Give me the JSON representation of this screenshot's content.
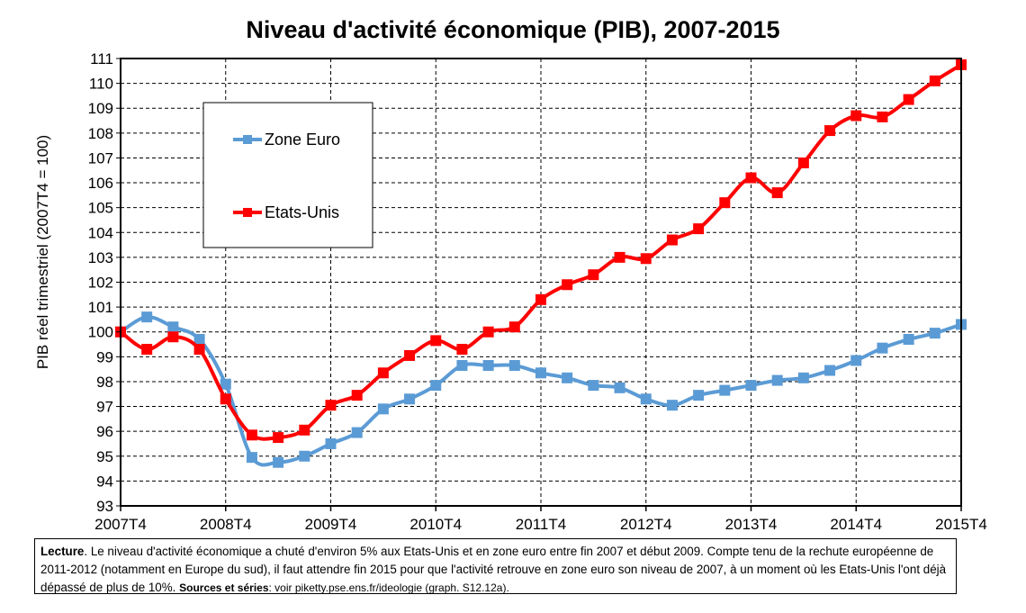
{
  "chart_data": {
    "type": "line",
    "title": "Niveau d'activité économique (PIB), 2007-2015",
    "ylabel": "PIB réel trimestriel (2007T4 = 100)",
    "xlabel": "",
    "ylim": [
      93,
      111
    ],
    "yticks": [
      93,
      94,
      95,
      96,
      97,
      98,
      99,
      100,
      101,
      102,
      103,
      104,
      105,
      106,
      107,
      108,
      109,
      110,
      111
    ],
    "x_tick_labels": [
      "2007T4",
      "2008T4",
      "2009T4",
      "2010T4",
      "2011T4",
      "2012T4",
      "2013T4",
      "2014T4",
      "2015T4"
    ],
    "x": [
      "2007T4",
      "2008T1",
      "2008T2",
      "2008T3",
      "2008T4",
      "2009T1",
      "2009T2",
      "2009T3",
      "2009T4",
      "2010T1",
      "2010T2",
      "2010T3",
      "2010T4",
      "2011T1",
      "2011T2",
      "2011T3",
      "2011T4",
      "2012T1",
      "2012T2",
      "2012T3",
      "2012T4",
      "2013T1",
      "2013T2",
      "2013T3",
      "2013T4",
      "2014T1",
      "2014T2",
      "2014T3",
      "2014T4",
      "2015T1",
      "2015T2",
      "2015T3",
      "2015T4"
    ],
    "grid": true,
    "legend_placement": "upper-left",
    "series": [
      {
        "name": "Zone Euro",
        "color": "#5b9bd5",
        "values": [
          100.0,
          100.6,
          100.2,
          99.7,
          97.9,
          94.95,
          94.75,
          95.0,
          95.5,
          95.95,
          96.9,
          97.3,
          97.85,
          98.65,
          98.65,
          98.65,
          98.35,
          98.15,
          97.85,
          97.75,
          97.3,
          97.05,
          97.45,
          97.65,
          97.85,
          98.05,
          98.15,
          98.45,
          98.85,
          99.35,
          99.7,
          99.95,
          100.3
        ]
      },
      {
        "name": "Etats-Unis",
        "color": "#ff0000",
        "values": [
          100.0,
          99.3,
          99.8,
          99.3,
          97.3,
          95.85,
          95.75,
          96.05,
          97.05,
          97.45,
          98.35,
          99.05,
          99.65,
          99.3,
          100.0,
          100.2,
          101.3,
          101.9,
          102.3,
          103.0,
          102.95,
          103.7,
          104.15,
          105.2,
          106.2,
          105.6,
          106.8,
          108.1,
          108.7,
          108.65,
          109.35,
          110.1,
          110.75
        ]
      }
    ]
  },
  "footnote": {
    "lecture_label": "Lecture",
    "lecture_text": ". Le niveau d'activité économique a chuté d'environ 5% aux Etats-Unis et en zone euro entre fin 2007 et début 2009. Compte tenu de la rechute européenne de 2011-2012 (notamment en Europe du sud), il faut attendre fin 2015 pour que l'activité retrouve en zone euro son niveau de 2007, à un moment où les Etats-Unis l'ont déjà dépassé de plus de 10%. ",
    "sources_label": "Sources et séries",
    "sources_text": ": voir piketty.pse.ens.fr/ideologie (graph. S12.12a)."
  }
}
